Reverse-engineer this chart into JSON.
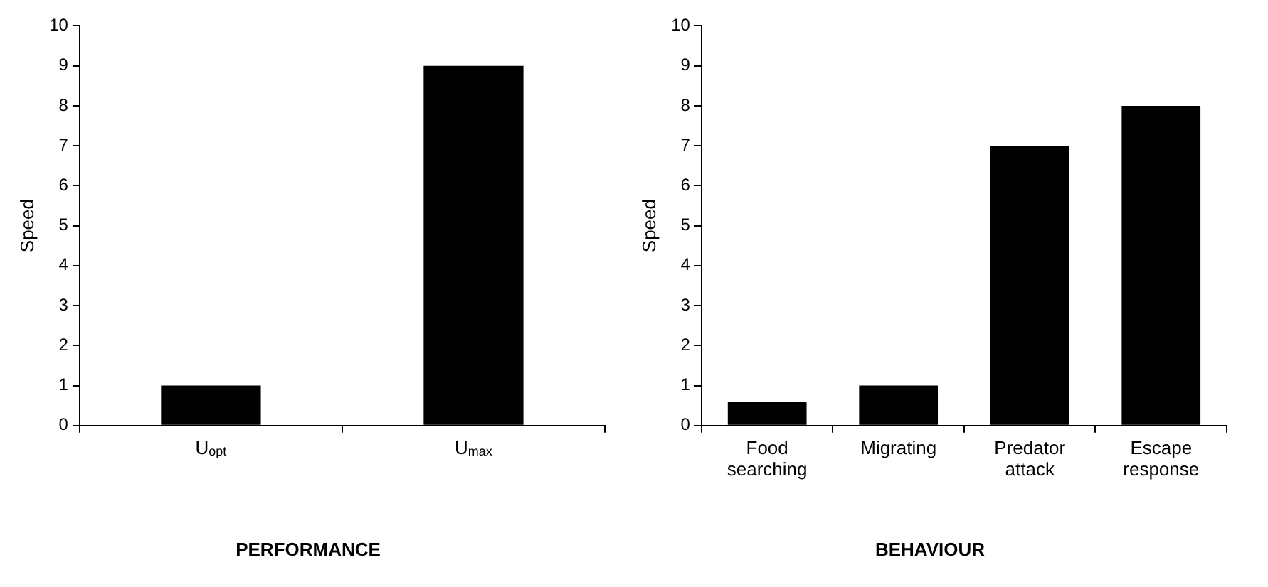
{
  "chart_data": [
    {
      "type": "bar",
      "title": "PERFORMANCE",
      "ylabel": "Speed",
      "categories": [
        "U$_{opt}$",
        "U$_{max}$"
      ],
      "values": [
        1,
        9
      ],
      "color": "#000000",
      "ylim": [
        0,
        10
      ],
      "yticks": [
        0,
        1,
        2,
        3,
        4,
        5,
        6,
        7,
        8,
        9,
        10
      ],
      "grid": false,
      "legend": false
    },
    {
      "type": "bar",
      "title": "BEHAVIOUR",
      "ylabel": "Speed",
      "categories": [
        "Food searching",
        "Migrating",
        "Predator attack",
        "Escape response"
      ],
      "values": [
        0.6,
        1,
        7,
        8
      ],
      "color": "#000000",
      "ylim": [
        0,
        10
      ],
      "yticks": [
        0,
        1,
        2,
        3,
        4,
        5,
        6,
        7,
        8,
        9,
        10
      ],
      "grid": false,
      "legend": false
    }
  ]
}
